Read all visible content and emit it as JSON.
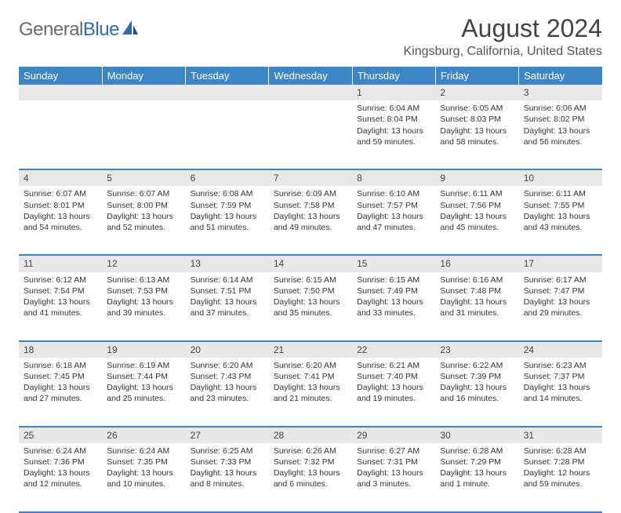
{
  "brand": {
    "part1": "General",
    "part2": "Blue"
  },
  "title": "August 2024",
  "location": "Kingsburg, California, United States",
  "colors": {
    "header_bg": "#3d86c6",
    "header_text": "#ffffff",
    "daynum_bg": "#e8e8e8",
    "row_border": "#3d86c6",
    "body_text": "#333333",
    "logo_gray": "#6b6b6b",
    "logo_blue": "#2d6db8"
  },
  "typography": {
    "title_fontsize": 32,
    "location_fontsize": 16,
    "dayheader_fontsize": 13,
    "cell_fontsize": 10.5
  },
  "day_headers": [
    "Sunday",
    "Monday",
    "Tuesday",
    "Wednesday",
    "Thursday",
    "Friday",
    "Saturday"
  ],
  "weeks": [
    [
      null,
      null,
      null,
      null,
      {
        "num": "1",
        "sunrise": "Sunrise: 6:04 AM",
        "sunset": "Sunset: 8:04 PM",
        "daylight": "Daylight: 13 hours and 59 minutes."
      },
      {
        "num": "2",
        "sunrise": "Sunrise: 6:05 AM",
        "sunset": "Sunset: 8:03 PM",
        "daylight": "Daylight: 13 hours and 58 minutes."
      },
      {
        "num": "3",
        "sunrise": "Sunrise: 6:06 AM",
        "sunset": "Sunset: 8:02 PM",
        "daylight": "Daylight: 13 hours and 56 minutes."
      }
    ],
    [
      {
        "num": "4",
        "sunrise": "Sunrise: 6:07 AM",
        "sunset": "Sunset: 8:01 PM",
        "daylight": "Daylight: 13 hours and 54 minutes."
      },
      {
        "num": "5",
        "sunrise": "Sunrise: 6:07 AM",
        "sunset": "Sunset: 8:00 PM",
        "daylight": "Daylight: 13 hours and 52 minutes."
      },
      {
        "num": "6",
        "sunrise": "Sunrise: 6:08 AM",
        "sunset": "Sunset: 7:59 PM",
        "daylight": "Daylight: 13 hours and 51 minutes."
      },
      {
        "num": "7",
        "sunrise": "Sunrise: 6:09 AM",
        "sunset": "Sunset: 7:58 PM",
        "daylight": "Daylight: 13 hours and 49 minutes."
      },
      {
        "num": "8",
        "sunrise": "Sunrise: 6:10 AM",
        "sunset": "Sunset: 7:57 PM",
        "daylight": "Daylight: 13 hours and 47 minutes."
      },
      {
        "num": "9",
        "sunrise": "Sunrise: 6:11 AM",
        "sunset": "Sunset: 7:56 PM",
        "daylight": "Daylight: 13 hours and 45 minutes."
      },
      {
        "num": "10",
        "sunrise": "Sunrise: 6:11 AM",
        "sunset": "Sunset: 7:55 PM",
        "daylight": "Daylight: 13 hours and 43 minutes."
      }
    ],
    [
      {
        "num": "11",
        "sunrise": "Sunrise: 6:12 AM",
        "sunset": "Sunset: 7:54 PM",
        "daylight": "Daylight: 13 hours and 41 minutes."
      },
      {
        "num": "12",
        "sunrise": "Sunrise: 6:13 AM",
        "sunset": "Sunset: 7:53 PM",
        "daylight": "Daylight: 13 hours and 39 minutes."
      },
      {
        "num": "13",
        "sunrise": "Sunrise: 6:14 AM",
        "sunset": "Sunset: 7:51 PM",
        "daylight": "Daylight: 13 hours and 37 minutes."
      },
      {
        "num": "14",
        "sunrise": "Sunrise: 6:15 AM",
        "sunset": "Sunset: 7:50 PM",
        "daylight": "Daylight: 13 hours and 35 minutes."
      },
      {
        "num": "15",
        "sunrise": "Sunrise: 6:15 AM",
        "sunset": "Sunset: 7:49 PM",
        "daylight": "Daylight: 13 hours and 33 minutes."
      },
      {
        "num": "16",
        "sunrise": "Sunrise: 6:16 AM",
        "sunset": "Sunset: 7:48 PM",
        "daylight": "Daylight: 13 hours and 31 minutes."
      },
      {
        "num": "17",
        "sunrise": "Sunrise: 6:17 AM",
        "sunset": "Sunset: 7:47 PM",
        "daylight": "Daylight: 13 hours and 29 minutes."
      }
    ],
    [
      {
        "num": "18",
        "sunrise": "Sunrise: 6:18 AM",
        "sunset": "Sunset: 7:45 PM",
        "daylight": "Daylight: 13 hours and 27 minutes."
      },
      {
        "num": "19",
        "sunrise": "Sunrise: 6:19 AM",
        "sunset": "Sunset: 7:44 PM",
        "daylight": "Daylight: 13 hours and 25 minutes."
      },
      {
        "num": "20",
        "sunrise": "Sunrise: 6:20 AM",
        "sunset": "Sunset: 7:43 PM",
        "daylight": "Daylight: 13 hours and 23 minutes."
      },
      {
        "num": "21",
        "sunrise": "Sunrise: 6:20 AM",
        "sunset": "Sunset: 7:41 PM",
        "daylight": "Daylight: 13 hours and 21 minutes."
      },
      {
        "num": "22",
        "sunrise": "Sunrise: 6:21 AM",
        "sunset": "Sunset: 7:40 PM",
        "daylight": "Daylight: 13 hours and 19 minutes."
      },
      {
        "num": "23",
        "sunrise": "Sunrise: 6:22 AM",
        "sunset": "Sunset: 7:39 PM",
        "daylight": "Daylight: 13 hours and 16 minutes."
      },
      {
        "num": "24",
        "sunrise": "Sunrise: 6:23 AM",
        "sunset": "Sunset: 7:37 PM",
        "daylight": "Daylight: 13 hours and 14 minutes."
      }
    ],
    [
      {
        "num": "25",
        "sunrise": "Sunrise: 6:24 AM",
        "sunset": "Sunset: 7:36 PM",
        "daylight": "Daylight: 13 hours and 12 minutes."
      },
      {
        "num": "26",
        "sunrise": "Sunrise: 6:24 AM",
        "sunset": "Sunset: 7:35 PM",
        "daylight": "Daylight: 13 hours and 10 minutes."
      },
      {
        "num": "27",
        "sunrise": "Sunrise: 6:25 AM",
        "sunset": "Sunset: 7:33 PM",
        "daylight": "Daylight: 13 hours and 8 minutes."
      },
      {
        "num": "28",
        "sunrise": "Sunrise: 6:26 AM",
        "sunset": "Sunset: 7:32 PM",
        "daylight": "Daylight: 13 hours and 6 minutes."
      },
      {
        "num": "29",
        "sunrise": "Sunrise: 6:27 AM",
        "sunset": "Sunset: 7:31 PM",
        "daylight": "Daylight: 13 hours and 3 minutes."
      },
      {
        "num": "30",
        "sunrise": "Sunrise: 6:28 AM",
        "sunset": "Sunset: 7:29 PM",
        "daylight": "Daylight: 13 hours and 1 minute."
      },
      {
        "num": "31",
        "sunrise": "Sunrise: 6:28 AM",
        "sunset": "Sunset: 7:28 PM",
        "daylight": "Daylight: 12 hours and 59 minutes."
      }
    ]
  ]
}
